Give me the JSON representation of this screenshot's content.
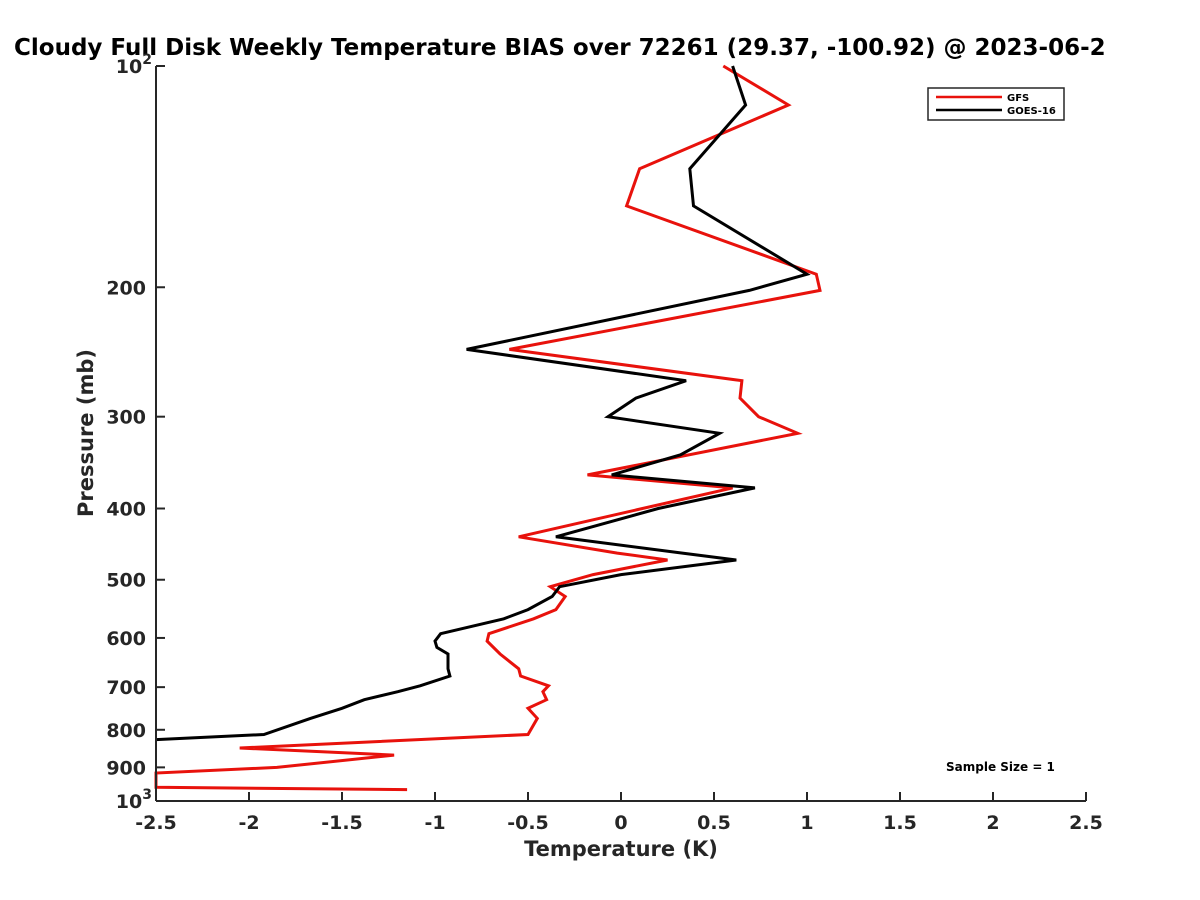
{
  "chart_data": {
    "type": "line",
    "title": "Cloudy Full Disk Weekly Temperature BIAS over 72261 (29.37, -100.92) @ 2023-06-2",
    "xlabel": "Temperature (K)",
    "ylabel": "Pressure (mb)",
    "xlim": [
      -2.5,
      2.5
    ],
    "ylim": [
      100,
      1000
    ],
    "y_scale": "log",
    "y_reversed": true,
    "x_ticks": [
      "-2.5",
      "-2",
      "-1.5",
      "-1",
      "-0.5",
      "0",
      "0.5",
      "1",
      "1.5",
      "2",
      "2.5"
    ],
    "y_ticks": [
      {
        "value": 100,
        "base": "10",
        "exp": "2"
      },
      {
        "value": 200,
        "label": "200"
      },
      {
        "value": 300,
        "label": "300"
      },
      {
        "value": 400,
        "label": "400"
      },
      {
        "value": 500,
        "label": "500"
      },
      {
        "value": 600,
        "label": "600"
      },
      {
        "value": 700,
        "label": "700"
      },
      {
        "value": 800,
        "label": "800"
      },
      {
        "value": 900,
        "label": "900"
      },
      {
        "value": 1000,
        "base": "10",
        "exp": "3"
      }
    ],
    "legend_position": "top-right",
    "grid": false,
    "annotation": "Sample Size = 1",
    "series": [
      {
        "name": "GFS",
        "color": "#e8120c",
        "points": [
          [
            0.55,
            100
          ],
          [
            0.9,
            113
          ],
          [
            0.1,
            138
          ],
          [
            0.03,
            155
          ],
          [
            1.05,
            192
          ],
          [
            1.07,
            202
          ],
          [
            -0.6,
            243
          ],
          [
            0.65,
            268
          ],
          [
            0.64,
            283
          ],
          [
            0.74,
            300
          ],
          [
            0.95,
            316
          ],
          [
            -0.18,
            360
          ],
          [
            0.6,
            375
          ],
          [
            -0.55,
            437
          ],
          [
            -0.02,
            460
          ],
          [
            0.25,
            470
          ],
          [
            -0.15,
            492
          ],
          [
            -0.38,
            511
          ],
          [
            -0.3,
            527
          ],
          [
            -0.35,
            549
          ],
          [
            -0.47,
            565
          ],
          [
            -0.71,
            592
          ],
          [
            -0.72,
            606
          ],
          [
            -0.65,
            631
          ],
          [
            -0.55,
            661
          ],
          [
            -0.54,
            676
          ],
          [
            -0.39,
            697
          ],
          [
            -0.42,
            710
          ],
          [
            -0.4,
            728
          ],
          [
            -0.5,
            748
          ],
          [
            -0.45,
            772
          ],
          [
            -0.5,
            812
          ],
          [
            -2.05,
            847
          ],
          [
            -1.22,
            866
          ],
          [
            -1.85,
            900
          ],
          [
            -2.5,
            916
          ],
          [
            -2.5,
            958
          ],
          [
            -1.15,
            965
          ]
        ]
      },
      {
        "name": "GOES-16",
        "color": "#000000",
        "points": [
          [
            0.6,
            100
          ],
          [
            0.67,
            113
          ],
          [
            0.37,
            138
          ],
          [
            0.39,
            155
          ],
          [
            1.0,
            192
          ],
          [
            0.69,
            202
          ],
          [
            -0.83,
            243
          ],
          [
            0.35,
            268
          ],
          [
            0.08,
            283
          ],
          [
            -0.07,
            300
          ],
          [
            0.53,
            316
          ],
          [
            0.32,
            338
          ],
          [
            -0.05,
            360
          ],
          [
            0.72,
            375
          ],
          [
            0.2,
            400
          ],
          [
            -0.35,
            437
          ],
          [
            0.33,
            460
          ],
          [
            0.62,
            470
          ],
          [
            0.0,
            492
          ],
          [
            -0.33,
            511
          ],
          [
            -0.37,
            527
          ],
          [
            -0.5,
            549
          ],
          [
            -0.63,
            565
          ],
          [
            -0.97,
            592
          ],
          [
            -1.0,
            606
          ],
          [
            -0.99,
            618
          ],
          [
            -0.93,
            631
          ],
          [
            -0.93,
            661
          ],
          [
            -0.92,
            676
          ],
          [
            -1.08,
            697
          ],
          [
            -1.2,
            710
          ],
          [
            -1.38,
            728
          ],
          [
            -1.5,
            748
          ],
          [
            -1.67,
            772
          ],
          [
            -1.92,
            812
          ],
          [
            -2.5,
            825
          ]
        ]
      }
    ]
  }
}
